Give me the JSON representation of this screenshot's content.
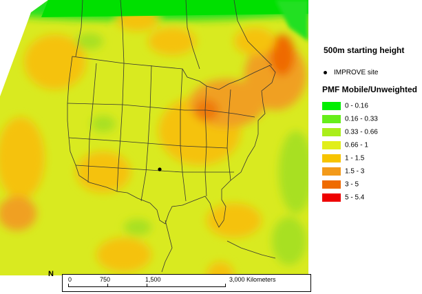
{
  "legend": {
    "title": "500m starting height",
    "site_label": "IMPROVE site",
    "subtitle": "PMF Mobile/Unweighted",
    "classes": [
      {
        "label": "0 - 0.16",
        "color": "#00ee00"
      },
      {
        "label": "0.16 - 0.33",
        "color": "#66ee1a"
      },
      {
        "label": "0.33 - 0.66",
        "color": "#aaee1a"
      },
      {
        "label": "0.66 - 1",
        "color": "#e1ee1a"
      },
      {
        "label": "1 - 1.5",
        "color": "#f7c400"
      },
      {
        "label": "1.5 - 3",
        "color": "#f39a1a"
      },
      {
        "label": "3 - 5",
        "color": "#ef6b00"
      },
      {
        "label": "5 - 5.4",
        "color": "#ee0000"
      }
    ]
  },
  "scale": {
    "labels": [
      "0",
      "750",
      "1,500",
      "3,000 Kilometers"
    ]
  },
  "north_arrow": "N",
  "map": {
    "site_name": "IMPROVE site",
    "background_color": "#e1ee1a"
  }
}
